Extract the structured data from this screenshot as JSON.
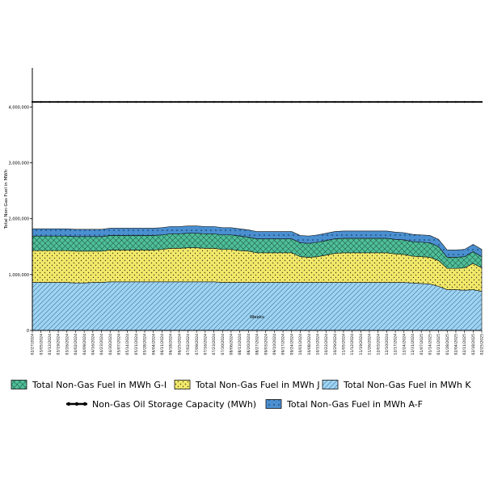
{
  "chart_data": {
    "type": "area",
    "stacked": true,
    "title": "",
    "xlabel": "Weeks",
    "ylabel": "Total Non-Gas Fuel in MWh",
    "ylim": [
      0,
      4700000
    ],
    "yticks": [
      0,
      1000000,
      2000000,
      3000000,
      4000000
    ],
    "ytick_labels": [
      "0",
      "1,000,000",
      "2,000,000",
      "3,000,000",
      "4,000,000"
    ],
    "categories": [
      "02/27/2024",
      "03/05/2024",
      "03/12/2024",
      "03/19/2024",
      "03/26/2024",
      "04/02/2024",
      "04/09/2024",
      "04/16/2024",
      "04/23/2024",
      "04/30/2024",
      "05/07/2024",
      "05/14/2024",
      "05/21/2024",
      "05/28/2024",
      "06/04/2024",
      "06/11/2024",
      "06/18/2024",
      "06/25/2024",
      "07/02/2024",
      "07/09/2024",
      "07/16/2024",
      "07/23/2024",
      "07/30/2024",
      "08/06/2024",
      "08/13/2024",
      "08/20/2024",
      "08/27/2024",
      "09/03/2024",
      "09/10/2024",
      "09/17/2024",
      "09/24/2024",
      "10/01/2024",
      "10/08/2024",
      "10/15/2024",
      "10/22/2024",
      "10/29/2024",
      "11/05/2024",
      "11/12/2024",
      "11/19/2024",
      "11/26/2024",
      "12/03/2024",
      "12/10/2024",
      "12/17/2024",
      "12/24/2024",
      "12/31/2024",
      "01/07/2025",
      "01/14/2025",
      "01/21/2025",
      "01/28/2025",
      "02/04/2025",
      "02/11/2025",
      "02/18/2025",
      "02/25/2025"
    ],
    "xtick_labels": [
      "02/27/2024",
      "03/05/2024",
      "03/12/2024",
      "03/19/2024",
      "03/26/2024",
      "04/02/2024",
      "04/09/2024",
      "04/16/2024",
      "04/23/2024",
      "04/30/2024",
      "05/07/2024",
      "05/14/2024",
      "05/21/2024",
      "05/28/2024",
      "06/04/2024",
      "06/11/2024",
      "06/18/2024",
      "06/25/2024",
      "07/02/2024",
      "07/09/2024",
      "07/16/2024",
      "07/23/2024",
      "07/30/2024",
      "08/06/2024",
      "08/13/2024",
      "08/20/2024",
      "08/27/2024",
      "09/03/2024",
      "09/10/2024",
      "09/17/2024",
      "09/24/2024",
      "10/01/2024",
      "10/08/2024",
      "10/15/2024",
      "10/22/2024",
      "10/29/2024",
      "11/05/2024",
      "11/12/2024",
      "11/19/2024",
      "11/26/2024",
      "12/03/2024",
      "12/10/2024",
      "12/17/2024",
      "12/24/2024",
      "12/31/2024",
      "01/07/2025",
      "01/14/2025",
      "01/21/2025",
      "01/28/2025",
      "02/04/2025",
      "02/11/2025",
      "02/18/2025",
      "02/25/2025"
    ],
    "series": [
      {
        "name": "Total Non-Gas Fuel in MWh K",
        "color": "#9fd4f2",
        "pattern": "diagonal-hatch",
        "values": [
          860000,
          860000,
          860000,
          860000,
          860000,
          850000,
          850000,
          860000,
          860000,
          870000,
          870000,
          870000,
          870000,
          870000,
          870000,
          870000,
          870000,
          870000,
          870000,
          870000,
          870000,
          870000,
          860000,
          860000,
          860000,
          860000,
          860000,
          860000,
          860000,
          860000,
          860000,
          860000,
          860000,
          860000,
          860000,
          860000,
          860000,
          860000,
          860000,
          860000,
          860000,
          860000,
          860000,
          860000,
          850000,
          840000,
          830000,
          790000,
          730000,
          730000,
          720000,
          730000,
          700000
        ]
      },
      {
        "name": "Total Non-Gas Fuel in MWh J",
        "color": "#f2e96a",
        "pattern": "dots",
        "values": [
          570000,
          570000,
          570000,
          570000,
          570000,
          570000,
          570000,
          560000,
          560000,
          570000,
          570000,
          570000,
          570000,
          570000,
          570000,
          580000,
          600000,
          600000,
          610000,
          610000,
          600000,
          600000,
          590000,
          590000,
          570000,
          560000,
          530000,
          530000,
          530000,
          530000,
          530000,
          460000,
          450000,
          460000,
          490000,
          520000,
          530000,
          530000,
          530000,
          530000,
          530000,
          530000,
          510000,
          500000,
          480000,
          480000,
          480000,
          460000,
          380000,
          380000,
          400000,
          470000,
          420000
        ]
      },
      {
        "name": "Total Non-Gas Fuel in MWh G-I",
        "color": "#4fbf9a",
        "pattern": "crosshatch",
        "values": [
          260000,
          260000,
          260000,
          260000,
          260000,
          260000,
          260000,
          260000,
          260000,
          260000,
          260000,
          260000,
          260000,
          260000,
          260000,
          260000,
          260000,
          260000,
          260000,
          260000,
          260000,
          260000,
          260000,
          260000,
          260000,
          250000,
          250000,
          250000,
          250000,
          250000,
          250000,
          250000,
          250000,
          260000,
          260000,
          260000,
          260000,
          260000,
          260000,
          260000,
          260000,
          260000,
          260000,
          260000,
          260000,
          260000,
          260000,
          250000,
          200000,
          200000,
          200000,
          210000,
          200000
        ]
      },
      {
        "name": "Total Non-Gas Fuel in MWh A-F",
        "color": "#4a8fd0",
        "pattern": "dots",
        "values": [
          130000,
          130000,
          130000,
          130000,
          130000,
          130000,
          130000,
          130000,
          130000,
          130000,
          130000,
          130000,
          130000,
          130000,
          130000,
          130000,
          130000,
          130000,
          130000,
          130000,
          130000,
          130000,
          130000,
          130000,
          130000,
          130000,
          130000,
          130000,
          130000,
          130000,
          130000,
          130000,
          130000,
          130000,
          130000,
          130000,
          130000,
          130000,
          130000,
          130000,
          130000,
          130000,
          130000,
          130000,
          130000,
          130000,
          130000,
          130000,
          130000,
          130000,
          130000,
          130000,
          130000
        ]
      }
    ],
    "lines": [
      {
        "name": "Non-Gas Oil Storage Capacity (MWh)",
        "color": "#000000",
        "marker": "circle",
        "value": 4090000
      }
    ],
    "legend": {
      "placement": "bottom",
      "items": [
        {
          "label": "Total Non-Gas Fuel in MWh G-I",
          "swatch": "G-I"
        },
        {
          "label": "Total Non-Gas Fuel in MWh J",
          "swatch": "J"
        },
        {
          "label": "Total Non-Gas Fuel in MWh K",
          "swatch": "K"
        },
        {
          "label": "Non-Gas Oil Storage Capacity (MWh)",
          "swatch": "line"
        },
        {
          "label": "Total Non-Gas Fuel in MWh A-F",
          "swatch": "A-F"
        }
      ]
    }
  }
}
